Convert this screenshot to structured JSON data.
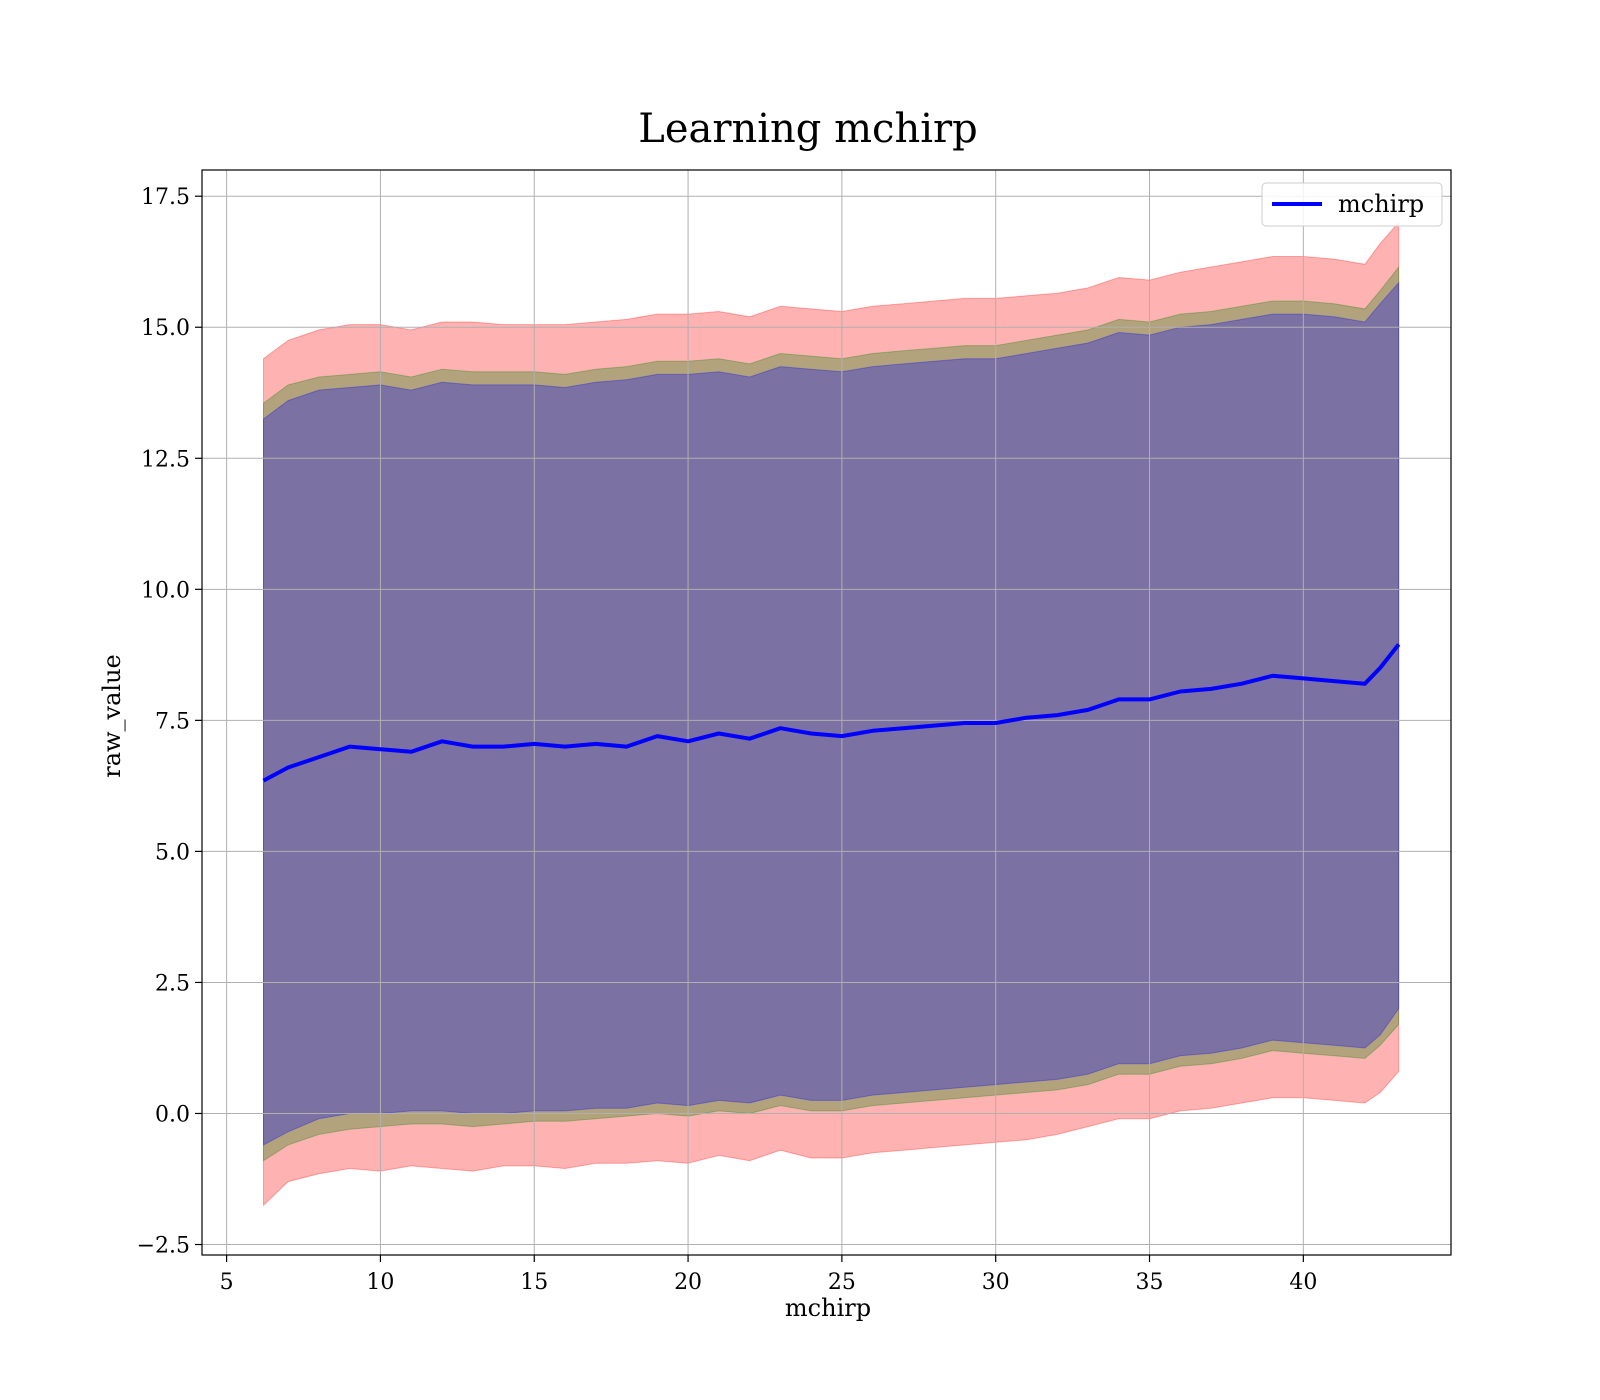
{
  "chart_data": {
    "type": "area",
    "title": "Learning mchirp",
    "xlabel": "mchirp",
    "ylabel": "raw_value",
    "xlim": [
      4.2,
      44.8
    ],
    "ylim": [
      -2.7,
      18.0
    ],
    "xticks": [
      5,
      10,
      15,
      20,
      25,
      30,
      35,
      40
    ],
    "xtick_labels": [
      "5",
      "10",
      "15",
      "20",
      "25",
      "30",
      "35",
      "40"
    ],
    "yticks": [
      -2.5,
      0.0,
      2.5,
      5.0,
      7.5,
      10.0,
      12.5,
      15.0,
      17.5
    ],
    "ytick_labels": [
      "−2.5",
      "0.0",
      "2.5",
      "5.0",
      "7.5",
      "10.0",
      "12.5",
      "15.0",
      "17.5"
    ],
    "grid": true,
    "legend": {
      "position": "top-right",
      "entries": [
        "mchirp"
      ]
    },
    "x": [
      6.2,
      7,
      8,
      9,
      10,
      11,
      12,
      13,
      14,
      15,
      16,
      17,
      18,
      19,
      20,
      21,
      22,
      23,
      24,
      25,
      26,
      27,
      28,
      29,
      30,
      31,
      32,
      33,
      34,
      35,
      36,
      37,
      38,
      39,
      40,
      41,
      42,
      42.5,
      43.1
    ],
    "series": [
      {
        "name": "mchirp",
        "color": "#0000ff",
        "values": [
          6.35,
          6.6,
          6.8,
          7.0,
          6.95,
          6.9,
          7.1,
          7.0,
          7.0,
          7.05,
          7.0,
          7.05,
          7.0,
          7.2,
          7.1,
          7.25,
          7.15,
          7.35,
          7.25,
          7.2,
          7.3,
          7.35,
          7.4,
          7.45,
          7.45,
          7.55,
          7.6,
          7.7,
          7.9,
          7.9,
          8.05,
          8.1,
          8.2,
          8.35,
          8.3,
          8.25,
          8.2,
          8.5,
          8.95
        ]
      }
    ],
    "bands": [
      {
        "color": "#ff0000",
        "lower": [
          -1.75,
          -1.3,
          -1.15,
          -1.05,
          -1.1,
          -1.0,
          -1.05,
          -1.1,
          -1.0,
          -1.0,
          -1.05,
          -0.95,
          -0.95,
          -0.9,
          -0.95,
          -0.8,
          -0.9,
          -0.7,
          -0.85,
          -0.85,
          -0.75,
          -0.7,
          -0.65,
          -0.6,
          -0.55,
          -0.5,
          -0.4,
          -0.25,
          -0.1,
          -0.1,
          0.05,
          0.1,
          0.2,
          0.3,
          0.3,
          0.25,
          0.2,
          0.4,
          0.8
        ],
        "upper": [
          14.4,
          14.75,
          14.95,
          15.05,
          15.05,
          14.95,
          15.1,
          15.1,
          15.05,
          15.05,
          15.05,
          15.1,
          15.15,
          15.25,
          15.25,
          15.3,
          15.2,
          15.4,
          15.35,
          15.3,
          15.4,
          15.45,
          15.5,
          15.55,
          15.55,
          15.6,
          15.65,
          15.75,
          15.95,
          15.9,
          16.05,
          16.15,
          16.25,
          16.35,
          16.35,
          16.3,
          16.2,
          16.6,
          17.0
        ]
      },
      {
        "color": "#008000",
        "lower": [
          -0.9,
          -0.6,
          -0.4,
          -0.3,
          -0.25,
          -0.2,
          -0.2,
          -0.25,
          -0.2,
          -0.15,
          -0.15,
          -0.1,
          -0.05,
          0.0,
          -0.05,
          0.05,
          0.0,
          0.15,
          0.05,
          0.05,
          0.15,
          0.2,
          0.25,
          0.3,
          0.35,
          0.4,
          0.45,
          0.55,
          0.75,
          0.75,
          0.9,
          0.95,
          1.05,
          1.2,
          1.15,
          1.1,
          1.05,
          1.3,
          1.7
        ],
        "upper": [
          13.55,
          13.9,
          14.05,
          14.1,
          14.15,
          14.05,
          14.2,
          14.15,
          14.15,
          14.15,
          14.1,
          14.2,
          14.25,
          14.35,
          14.35,
          14.4,
          14.3,
          14.5,
          14.45,
          14.4,
          14.5,
          14.55,
          14.6,
          14.65,
          14.65,
          14.75,
          14.85,
          14.95,
          15.15,
          15.1,
          15.25,
          15.3,
          15.4,
          15.5,
          15.5,
          15.45,
          15.35,
          15.7,
          16.15
        ]
      },
      {
        "color": "#0000ff",
        "lower": [
          -0.6,
          -0.35,
          -0.1,
          0.0,
          0.0,
          0.05,
          0.05,
          0.0,
          0.0,
          0.05,
          0.05,
          0.1,
          0.1,
          0.2,
          0.15,
          0.25,
          0.2,
          0.35,
          0.25,
          0.25,
          0.35,
          0.4,
          0.45,
          0.5,
          0.55,
          0.6,
          0.65,
          0.75,
          0.95,
          0.95,
          1.1,
          1.15,
          1.25,
          1.4,
          1.35,
          1.3,
          1.25,
          1.5,
          2.0
        ],
        "upper": [
          13.25,
          13.6,
          13.8,
          13.85,
          13.9,
          13.8,
          13.95,
          13.9,
          13.9,
          13.9,
          13.85,
          13.95,
          14.0,
          14.1,
          14.1,
          14.15,
          14.05,
          14.25,
          14.2,
          14.15,
          14.25,
          14.3,
          14.35,
          14.4,
          14.4,
          14.5,
          14.6,
          14.7,
          14.9,
          14.85,
          15.0,
          15.05,
          15.15,
          15.25,
          15.25,
          15.2,
          15.1,
          15.45,
          15.85
        ]
      }
    ]
  }
}
